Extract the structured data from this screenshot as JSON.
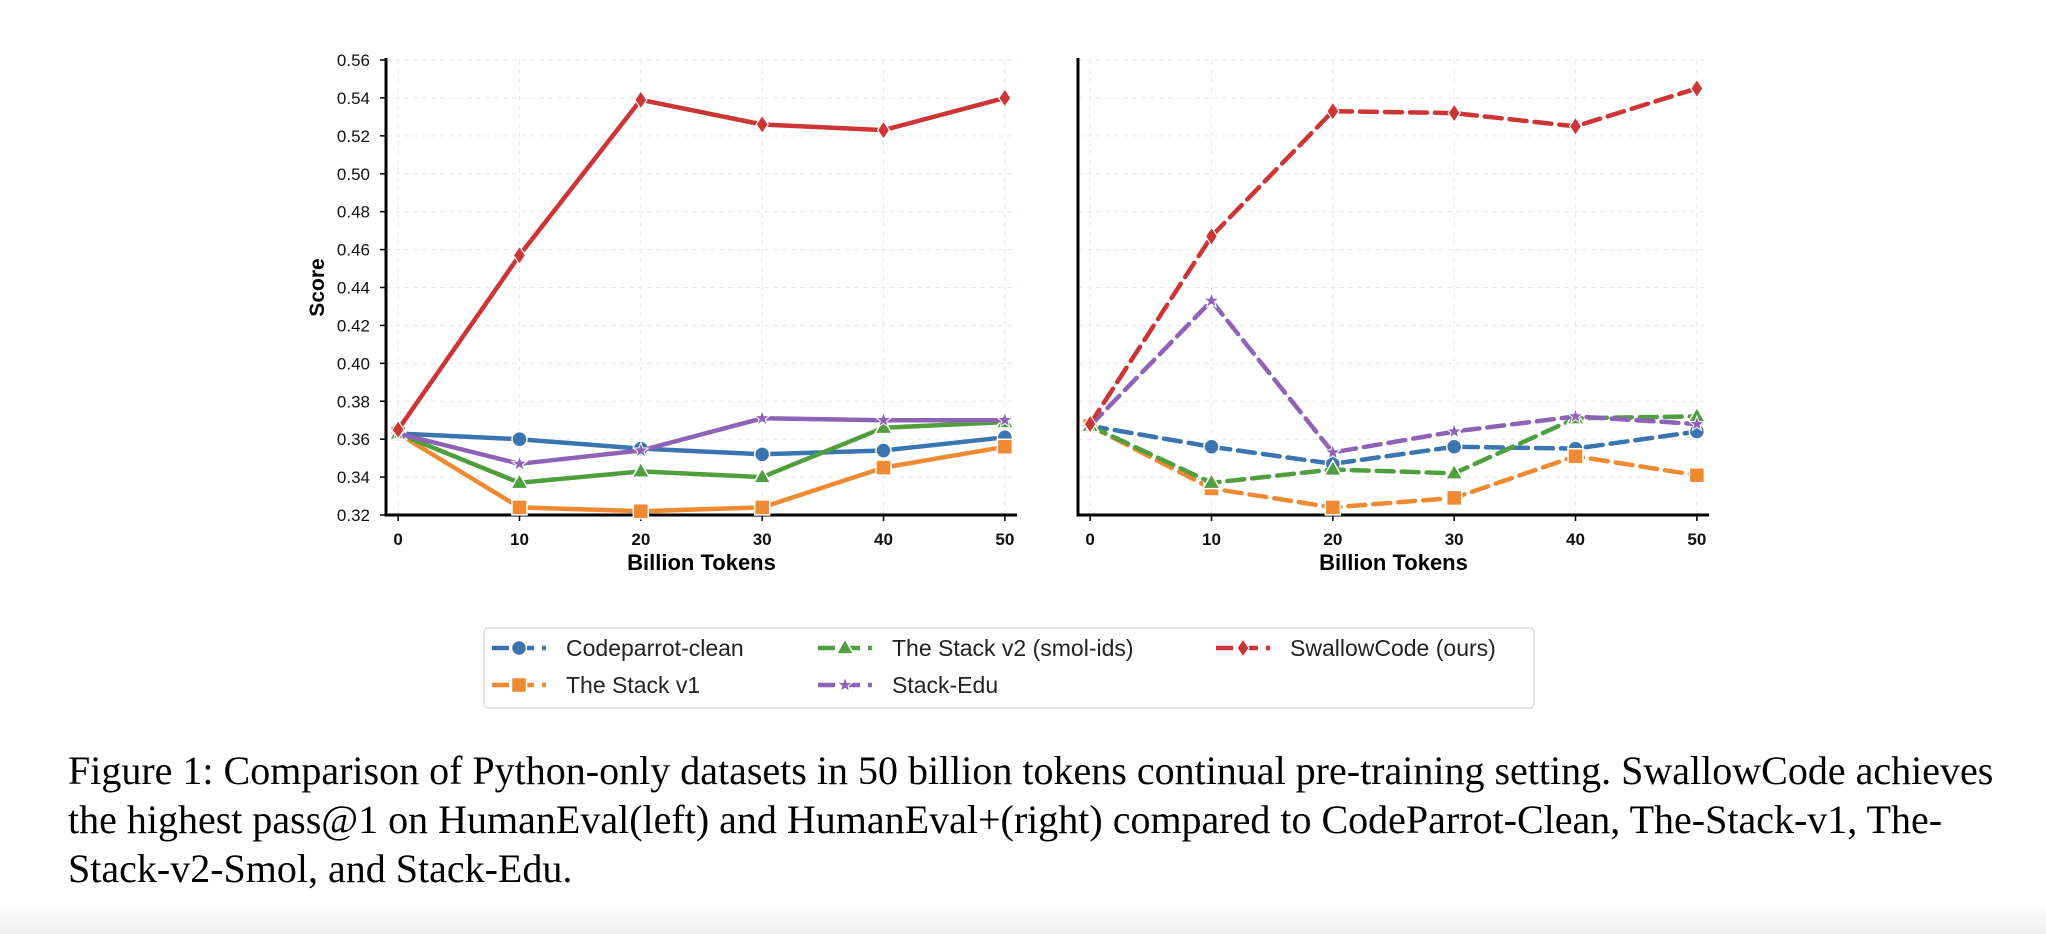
{
  "chart_data": [
    {
      "type": "line",
      "panel": "left",
      "linestyle": "solid",
      "xlabel": "Billion Tokens",
      "ylabel": "Score",
      "x": [
        0,
        10,
        20,
        30,
        40,
        50
      ],
      "xlim": [
        -1,
        51
      ],
      "ylim": [
        0.32,
        0.56
      ],
      "yticks": [
        "0.32",
        "0.34",
        "0.36",
        "0.38",
        "0.40",
        "0.42",
        "0.44",
        "0.46",
        "0.48",
        "0.50",
        "0.52",
        "0.54",
        "0.56"
      ],
      "xticks": [
        "0",
        "10",
        "20",
        "30",
        "40",
        "50"
      ],
      "grid": true,
      "series": [
        {
          "name": "Codeparrot-clean",
          "color": "#3a75b0",
          "marker": "circle",
          "values": [
            0.363,
            0.36,
            0.355,
            0.352,
            0.354,
            0.361
          ]
        },
        {
          "name": "The Stack v1",
          "color": "#ef8a32",
          "marker": "square",
          "values": [
            0.363,
            0.324,
            0.322,
            0.324,
            0.345,
            0.356
          ]
        },
        {
          "name": "The Stack v2 (smol-ids)",
          "color": "#4f9f3f",
          "marker": "triangle",
          "values": [
            0.363,
            0.337,
            0.343,
            0.34,
            0.366,
            0.369
          ]
        },
        {
          "name": "Stack-Edu",
          "color": "#8e63b7",
          "marker": "star",
          "values": [
            0.363,
            0.347,
            0.354,
            0.371,
            0.37,
            0.37
          ]
        },
        {
          "name": "SwallowCode (ours)",
          "color": "#cc3533",
          "marker": "diamond",
          "values": [
            0.365,
            0.457,
            0.539,
            0.526,
            0.523,
            0.54
          ]
        }
      ]
    },
    {
      "type": "line",
      "panel": "right",
      "linestyle": "dashed",
      "xlabel": "Billion Tokens",
      "ylabel": "",
      "x": [
        0,
        10,
        20,
        30,
        40,
        50
      ],
      "xlim": [
        -1,
        51
      ],
      "ylim": [
        0.32,
        0.56
      ],
      "xticks": [
        "0",
        "10",
        "20",
        "30",
        "40",
        "50"
      ],
      "grid": true,
      "series": [
        {
          "name": "Codeparrot-clean",
          "color": "#3a75b0",
          "marker": "circle",
          "values": [
            0.367,
            0.356,
            0.347,
            0.356,
            0.355,
            0.364
          ]
        },
        {
          "name": "The Stack v1",
          "color": "#ef8a32",
          "marker": "square",
          "values": [
            0.367,
            0.334,
            0.324,
            0.329,
            0.351,
            0.341
          ]
        },
        {
          "name": "The Stack v2 (smol-ids)",
          "color": "#4f9f3f",
          "marker": "triangle",
          "values": [
            0.367,
            0.337,
            0.344,
            0.342,
            0.371,
            0.372
          ]
        },
        {
          "name": "Stack-Edu",
          "color": "#8e63b7",
          "marker": "star",
          "values": [
            0.367,
            0.433,
            0.353,
            0.364,
            0.372,
            0.368
          ]
        },
        {
          "name": "SwallowCode (ours)",
          "color": "#cc3533",
          "marker": "diamond",
          "values": [
            0.368,
            0.467,
            0.533,
            0.532,
            0.525,
            0.545
          ]
        }
      ]
    }
  ],
  "legend": {
    "placement": "bottom-center",
    "columns": [
      [
        "Codeparrot-clean",
        "The Stack v1"
      ],
      [
        "The Stack v2 (smol-ids)",
        "Stack-Edu"
      ],
      [
        "SwallowCode (ours)"
      ]
    ]
  },
  "caption": "Figure 1: Comparison of Python-only datasets in 50 billion tokens continual pre-training setting. SwallowCode achieves the highest pass@1 on HumanEval(left) and HumanEval+(right) compared to CodeParrot-Clean, The-Stack-v1, The-Stack-v2-Smol, and Stack-Edu."
}
